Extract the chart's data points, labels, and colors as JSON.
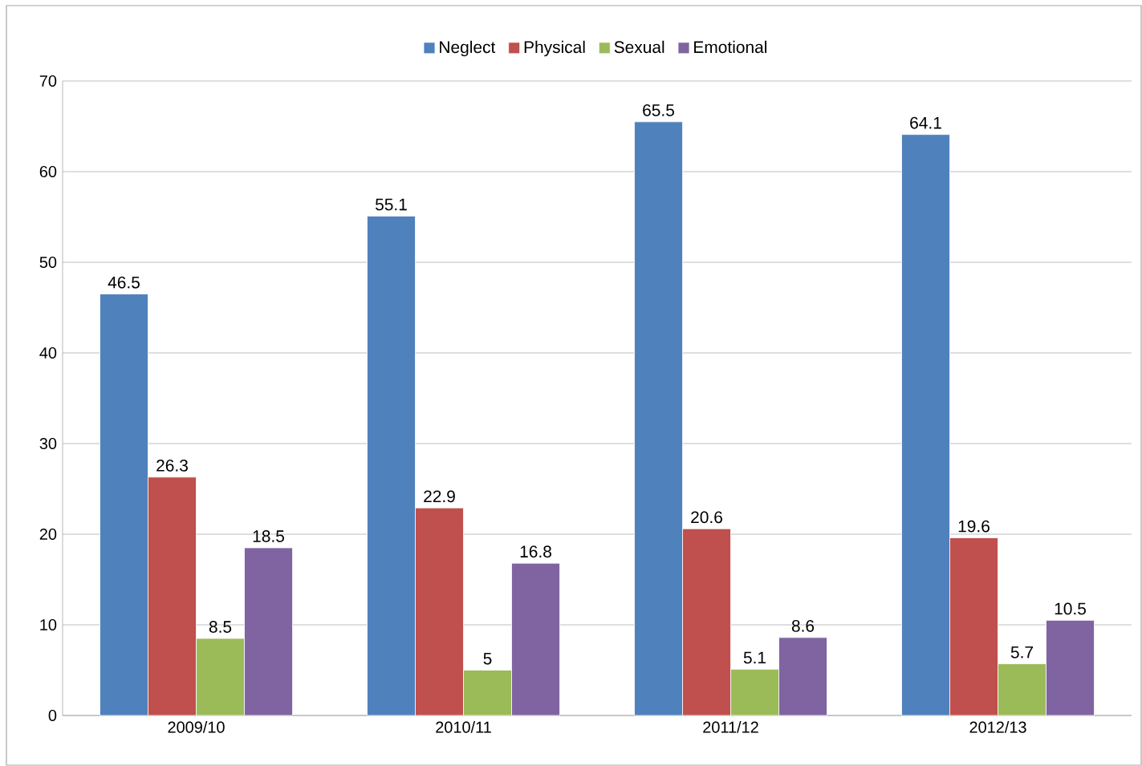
{
  "chart_data": {
    "type": "bar",
    "categories": [
      "2009/10",
      "2010/11",
      "2011/12",
      "2012/13"
    ],
    "series": [
      {
        "name": "Neglect",
        "color": "#4f81bd",
        "values": [
          46.5,
          55.1,
          65.5,
          64.1
        ]
      },
      {
        "name": "Physical",
        "color": "#c0504d",
        "values": [
          26.3,
          22.9,
          20.6,
          19.6
        ]
      },
      {
        "name": "Sexual",
        "color": "#9bbb59",
        "values": [
          8.5,
          5,
          5.1,
          5.7
        ]
      },
      {
        "name": "Emotional",
        "color": "#8064a2",
        "values": [
          18.5,
          16.8,
          8.6,
          10.5
        ]
      }
    ],
    "ylim": [
      0,
      70
    ],
    "yticks": [
      0,
      10,
      20,
      30,
      40,
      50,
      60,
      70
    ],
    "grid": "y",
    "legend": "top",
    "data_labels": true
  }
}
